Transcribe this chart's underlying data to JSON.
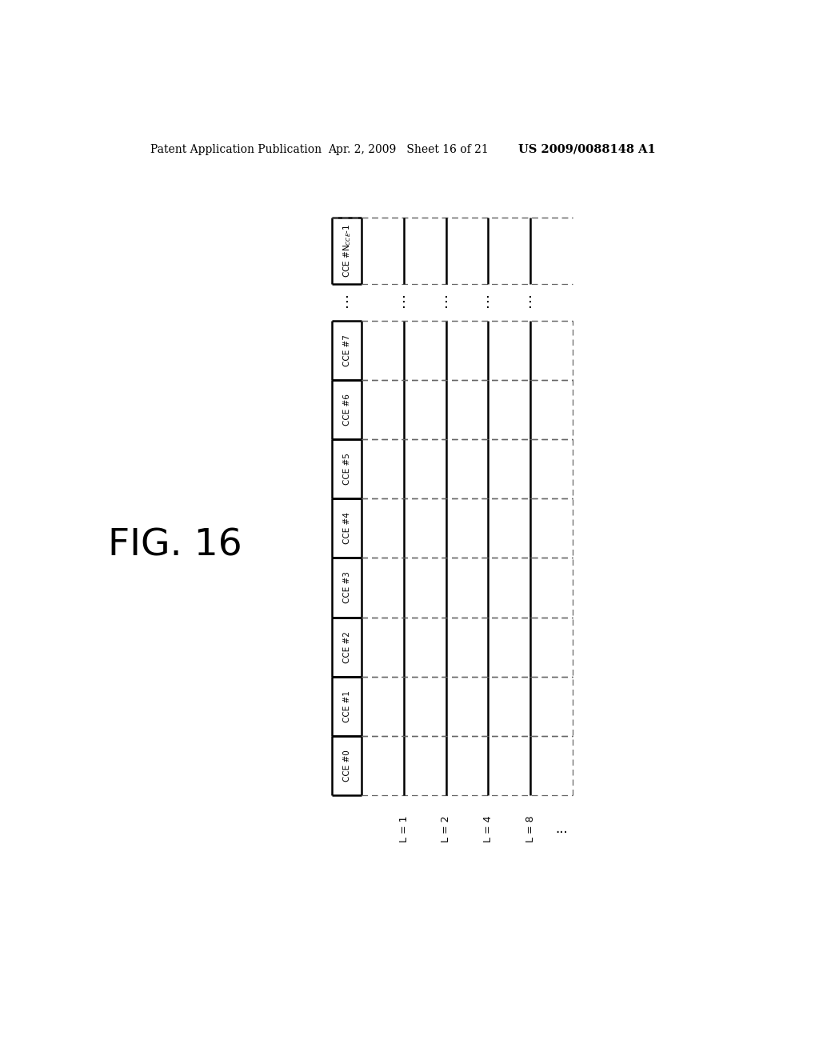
{
  "fig_label": "FIG. 16",
  "header_left": "Patent Application Publication",
  "header_middle": "Apr. 2, 2009   Sheet 16 of 21",
  "header_right": "US 2009/0088148 A1",
  "n_vertical_lines": 4,
  "l_labels": [
    "L = 1",
    "L = 2",
    "L = 4",
    "L = 8",
    "..."
  ],
  "background_color": "#ffffff",
  "line_color": "#000000",
  "dashed_color": "#666666"
}
